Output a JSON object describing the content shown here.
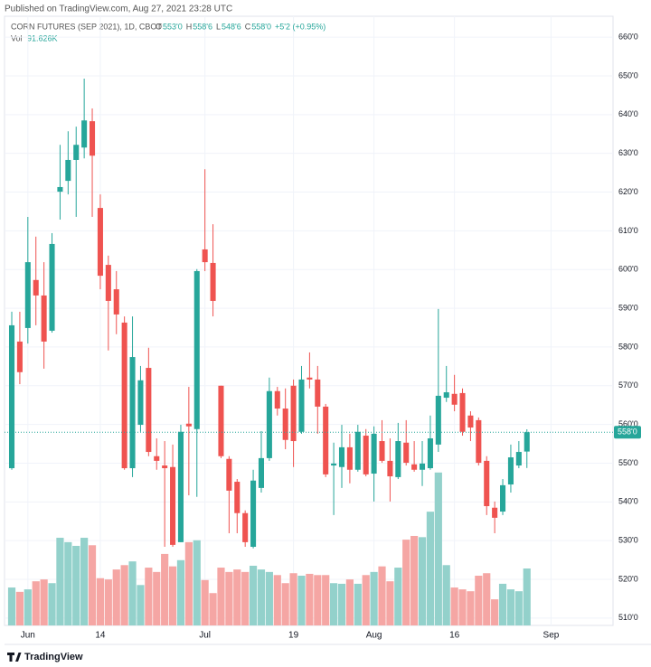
{
  "header": {
    "published": "Published on TradingView.com, Aug 27, 2021 23:28 UTC"
  },
  "chart_data": {
    "type": "candlestick",
    "symbol": "CORN FUTURES (SEP 2021), 1D, CBOT",
    "legend_labels": {
      "open": "O",
      "high": "H",
      "low": "L",
      "close": "C",
      "volume": "Vol"
    },
    "last_labels": {
      "open": "553'0",
      "high": "558'6",
      "low": "548'6",
      "close": "558'0",
      "change": "+5'2 (+0.95%)",
      "volume": "91.626K"
    },
    "open": [
      548.7,
      581.4,
      584.9,
      597.3,
      593.3,
      584.2,
      620.1,
      622.9,
      628.3,
      631.5,
      638.3,
      615.9,
      601.2,
      594.9,
      586.3,
      548.7,
      559.9,
      574.6,
      551.8,
      549.4,
      549.0,
      529.6,
      560.2,
      558.8,
      605.2,
      601.7,
      570.0,
      551.1,
      545.2,
      537.1,
      528.4,
      543.6,
      551.3,
      568.6,
      564.1,
      570.0,
      558.1,
      572.1,
      571.6,
      564.6,
      549.4,
      549.0,
      554.1,
      548.3,
      557.1,
      547.3,
      555.7,
      550.6,
      546.4,
      555.3,
      549.7,
      548.3,
      548.7,
      554.8,
      566.9,
      567.9,
      568.1,
      562.3,
      561.1,
      550.6,
      538.5,
      537.5,
      544.5,
      549.4,
      553
    ],
    "high": [
      589.1,
      589.1,
      613.6,
      608.5,
      601.9,
      609.4,
      632.2,
      635.7,
      636.9,
      649.3,
      641.6,
      619.4,
      603.6,
      599.6,
      587.9,
      587.9,
      575.1,
      579.8,
      556.4,
      555.7,
      554.8,
      559.9,
      569.7,
      600.1,
      625.9,
      611.7,
      570.0,
      551.8,
      545.9,
      537.8,
      548.3,
      558.3,
      572.1,
      569.7,
      569.3,
      571.6,
      575.1,
      578.6,
      575.1,
      565.3,
      555.3,
      559.9,
      557.6,
      559.9,
      558.8,
      559.5,
      561.1,
      556.4,
      560.4,
      561.1,
      555.7,
      555.7,
      562.3,
      589.8,
      575.1,
      572.8,
      569.3,
      563.4,
      561.8,
      551.8,
      540.1,
      545.9,
      554.8,
      555.7,
      558.75
    ],
    "low": [
      548.3,
      570.4,
      580.9,
      585.6,
      574.4,
      583.7,
      612.9,
      619.4,
      613.6,
      628.7,
      613.6,
      594.9,
      579.1,
      583.3,
      548.3,
      546.4,
      558.1,
      551.8,
      548.3,
      528.4,
      528.4,
      529.6,
      541.7,
      541.3,
      599.6,
      587.9,
      551.3,
      531.9,
      531.9,
      528.4,
      528.0,
      542.4,
      550.6,
      562.3,
      553.6,
      549.0,
      557.6,
      569.3,
      557.6,
      546.4,
      536.6,
      543.6,
      544.8,
      547.8,
      546.6,
      540.1,
      550.1,
      540.1,
      545.9,
      549.4,
      547.8,
      544.1,
      548.3,
      552.9,
      565.8,
      563.4,
      557.1,
      555.7,
      549.4,
      536.6,
      531.9,
      536.6,
      542.4,
      548.7,
      548.75
    ],
    "close": [
      585.6,
      573.5,
      601.9,
      593.3,
      581.4,
      606.6,
      621.3,
      628.3,
      632.2,
      638.5,
      629.4,
      598.4,
      591.9,
      588.4,
      548.7,
      577.4,
      571.4,
      552.9,
      550.6,
      548.7,
      528.9,
      558.1,
      559.5,
      599.6,
      601.9,
      591.9,
      551.8,
      542.9,
      537.1,
      529.6,
      545.5,
      551.3,
      568.6,
      564.1,
      556.0,
      555.7,
      571.6,
      571.6,
      564.6,
      547.1,
      549.9,
      554.1,
      548.3,
      558.1,
      547.1,
      557.6,
      550.6,
      546.6,
      555.7,
      550.1,
      548.3,
      549.9,
      556.4,
      567.4,
      568.3,
      565.1,
      558.1,
      559.2,
      550.1,
      538.9,
      535.9,
      544.3,
      551.5,
      552.9,
      558
    ],
    "volume": [
      61000,
      54000,
      58000,
      71000,
      74000,
      68000,
      141000,
      134000,
      128000,
      141000,
      129000,
      76000,
      74000,
      90000,
      97000,
      103000,
      65000,
      93000,
      86000,
      115000,
      95000,
      105000,
      134000,
      137000,
      73000,
      52000,
      93000,
      86000,
      90000,
      86000,
      96000,
      90000,
      86000,
      81000,
      68000,
      84000,
      80000,
      83000,
      81000,
      81000,
      68000,
      67000,
      74000,
      67000,
      81000,
      86000,
      95000,
      71000,
      93000,
      138000,
      144000,
      142000,
      183000,
      246000,
      97000,
      61000,
      58000,
      55000,
      80000,
      84000,
      42000,
      67000,
      58000,
      55000,
      91626
    ],
    "up_color": "#26a69a",
    "down_color": "#ef5350",
    "volume_up_color": "#93d1cb",
    "volume_down_color": "#f5a6a4",
    "xlim": [
      -0.9,
      74.7
    ],
    "xticks": [
      {
        "value": 2,
        "label": "Jun"
      },
      {
        "value": 11,
        "label": "14"
      },
      {
        "value": 24,
        "label": "Jul"
      },
      {
        "value": 35,
        "label": "19"
      },
      {
        "value": 45,
        "label": "Aug"
      },
      {
        "value": 55,
        "label": "16"
      },
      {
        "value": 67,
        "label": "Sep"
      }
    ],
    "ylim": [
      508.1,
      665.4
    ],
    "yticks": [
      {
        "value": 510,
        "label": "510'0"
      },
      {
        "value": 520,
        "label": "520'0"
      },
      {
        "value": 530,
        "label": "530'0"
      },
      {
        "value": 540,
        "label": "540'0"
      },
      {
        "value": 550,
        "label": "550'0"
      },
      {
        "value": 560,
        "label": "560'0"
      },
      {
        "value": 570,
        "label": "570'0"
      },
      {
        "value": 580,
        "label": "580'0"
      },
      {
        "value": 590,
        "label": "590'0"
      },
      {
        "value": 600,
        "label": "600'0"
      },
      {
        "value": 610,
        "label": "610'0"
      },
      {
        "value": 620,
        "label": "620'0"
      },
      {
        "value": 630,
        "label": "630'0"
      },
      {
        "value": 640,
        "label": "640'0"
      },
      {
        "value": 650,
        "label": "650'0"
      },
      {
        "value": 660,
        "label": "660'0"
      }
    ],
    "vlim": [
      0,
      980000
    ],
    "grid": true
  },
  "footer": {
    "brand": "TradingView"
  }
}
